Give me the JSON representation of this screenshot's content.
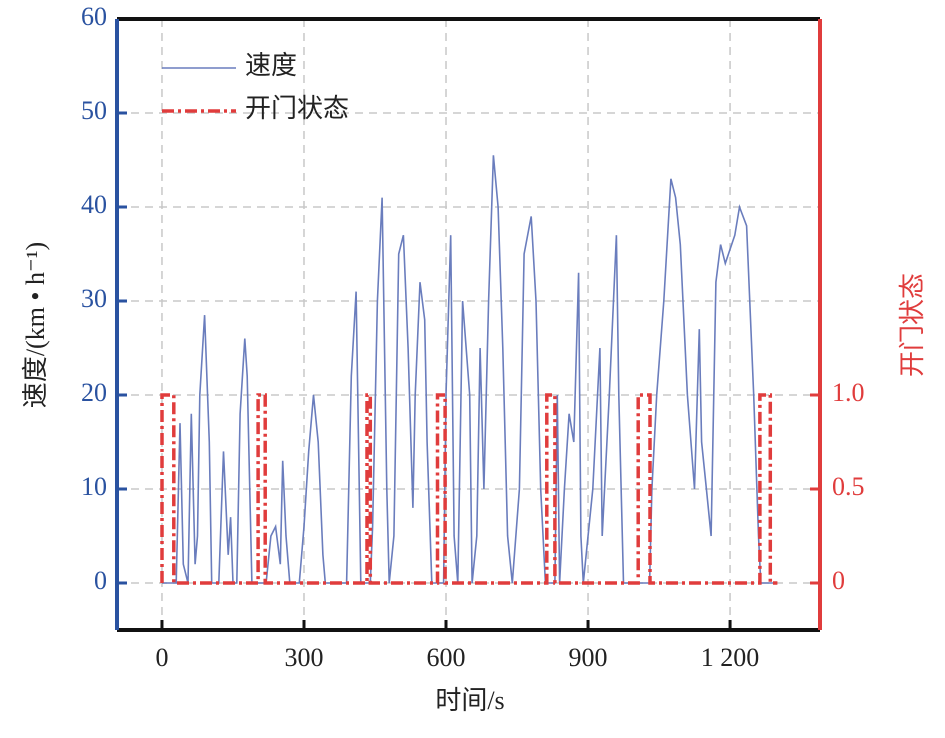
{
  "chart_data": {
    "type": "line",
    "xlabel": "时间/s",
    "ylabel": "速度/(km • h⁻¹)",
    "y2label": "开门状态",
    "xlim": [
      -95,
      1390
    ],
    "xticks": [
      0,
      300,
      600,
      900,
      {
        "value": 1200,
        "label": "1 200"
      }
    ],
    "ylim": [
      -5,
      60
    ],
    "yticks": [
      0,
      10,
      20,
      30,
      40,
      50,
      60
    ],
    "y2lim": [
      -0.25,
      3.0
    ],
    "y2ticks": [
      0,
      0.5,
      {
        "value": 1.0,
        "label": "1.0"
      }
    ],
    "grid": true,
    "legend": "upper left",
    "series": [
      {
        "name": "速度",
        "color": "#6a7dbd",
        "x": [
          0,
          30,
          38,
          45,
          55,
          62,
          70,
          75,
          80,
          90,
          100,
          105,
          120,
          130,
          140,
          145,
          150,
          158,
          165,
          175,
          180,
          190,
          220,
          230,
          240,
          250,
          255,
          262,
          270,
          290,
          300,
          310,
          320,
          330,
          340,
          345,
          390,
          400,
          410,
          420,
          440,
          445,
          455,
          465,
          475,
          480,
          490,
          500,
          510,
          520,
          530,
          535,
          545,
          555,
          560,
          570,
          595,
          600,
          610,
          617,
          625,
          635,
          650,
          655,
          665,
          672,
          680,
          690,
          700,
          710,
          720,
          730,
          740,
          755,
          765,
          780,
          790,
          800,
          810,
          830,
          835,
          840,
          850,
          860,
          870,
          880,
          885,
          890,
          910,
          925,
          930,
          945,
          960,
          965,
          975,
          1030,
          1035,
          1045,
          1060,
          1075,
          1085,
          1095,
          1110,
          1125,
          1135,
          1140,
          1150,
          1160,
          1170,
          1180,
          1190,
          1210,
          1220,
          1235,
          1250,
          1260,
          1265,
          1300
        ],
        "values": [
          0,
          0,
          17,
          2,
          0,
          18,
          2,
          5,
          20,
          28.5,
          15,
          0,
          0,
          14,
          3,
          7,
          0,
          0,
          18,
          26,
          22,
          0,
          0,
          5,
          6,
          2,
          13,
          5,
          0,
          0,
          6,
          14,
          20,
          15,
          3,
          0,
          0,
          22,
          31,
          0,
          0,
          6,
          30,
          41,
          10,
          0,
          5,
          35,
          37,
          25,
          8,
          20,
          32,
          28,
          15,
          0,
          0,
          20,
          37,
          5,
          0,
          30,
          20,
          0,
          5,
          25,
          10,
          30,
          45.5,
          40,
          25,
          5,
          0,
          10,
          35,
          39,
          30,
          10,
          0,
          0,
          20,
          0,
          10,
          18,
          15,
          33,
          5,
          0,
          10,
          25,
          5,
          20,
          37,
          20,
          0,
          0,
          10,
          20,
          30,
          43,
          41,
          36,
          20,
          10,
          27,
          15,
          10,
          5,
          32,
          36,
          34,
          37,
          40,
          38,
          20,
          5,
          0,
          0
        ]
      },
      {
        "name": "开门状态",
        "color": "#e03c3c",
        "axis": "y2",
        "x": [
          0,
          0,
          25,
          25,
          203,
          203,
          218,
          218,
          433,
          433,
          440,
          440,
          582,
          582,
          598,
          598,
          813,
          813,
          830,
          830,
          1006,
          1006,
          1031,
          1031,
          1263,
          1263,
          1285,
          1285,
          1300
        ],
        "values": [
          0,
          1,
          1,
          0,
          0,
          1,
          1,
          0,
          0,
          1,
          1,
          0,
          0,
          1,
          1,
          0,
          0,
          1,
          1,
          0,
          0,
          1,
          1,
          0,
          0,
          1,
          1,
          0,
          0
        ]
      }
    ]
  }
}
